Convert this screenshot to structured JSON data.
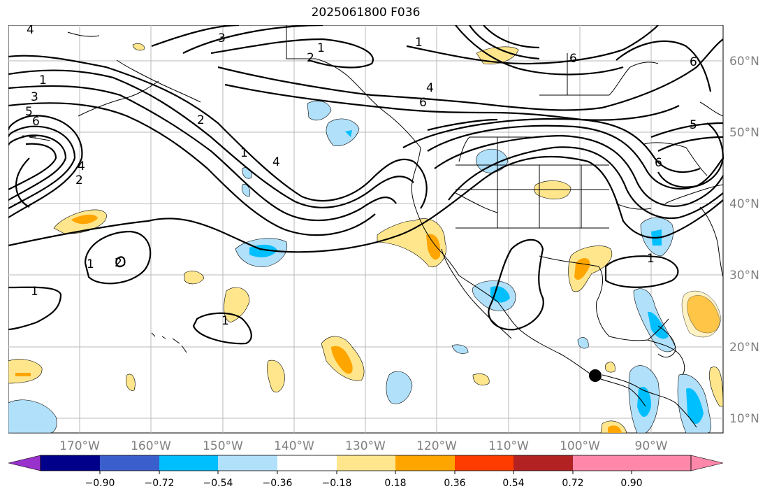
{
  "title": "2025061800 F036",
  "map": {
    "lon_labels": [
      "170°W",
      "160°W",
      "150°W",
      "140°W",
      "130°W",
      "120°W",
      "110°W",
      "100°W",
      "90°W"
    ],
    "lat_labels": [
      "60°N",
      "50°N",
      "40°N",
      "30°N",
      "20°N",
      "10°N"
    ],
    "contour_labels": [
      "4",
      "3",
      "1",
      "2",
      "6",
      "4",
      "6",
      "5",
      "1",
      "3",
      "5",
      "6",
      "6",
      "4",
      "2",
      "2",
      "1",
      "4",
      "1",
      "1",
      "1",
      "2",
      "1",
      "1",
      "6"
    ],
    "marker": "storm-center-dot"
  },
  "colorbar": {
    "ticks": [
      "−0.90",
      "−0.72",
      "−0.54",
      "−0.36",
      "−0.18",
      "0.18",
      "0.36",
      "0.54",
      "0.72",
      "0.90"
    ],
    "colors": [
      "#9932cc",
      "#00008b",
      "#3a5fcd",
      "#00bfff",
      "#b0e0fa",
      "#ffffff",
      "#ffe68c",
      "#ffa500",
      "#ff3c00",
      "#b22222",
      "#ff88aa"
    ],
    "low_extend_color": "#9932cc",
    "high_extend_color": "#ff88aa"
  }
}
